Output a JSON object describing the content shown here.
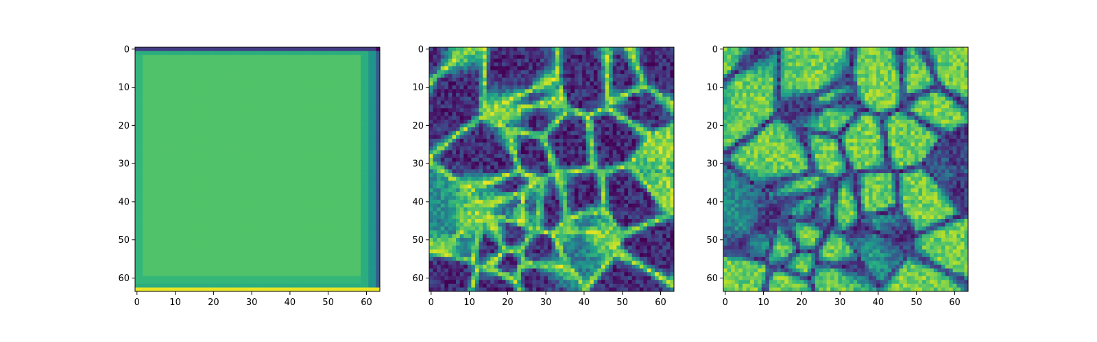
{
  "chart_data": [
    {
      "type": "heatmap",
      "title": "",
      "xlabel": "",
      "ylabel": "",
      "grid": false,
      "colormap": "viridis",
      "shape": [
        64,
        64
      ],
      "xlim": [
        -0.5,
        63.5
      ],
      "ylim": [
        63.5,
        -0.5
      ],
      "xticks": [
        0,
        10,
        20,
        30,
        40,
        50,
        60
      ],
      "yticks": [
        0,
        10,
        20,
        30,
        40,
        50,
        60
      ],
      "xtick_labels": [
        "0",
        "10",
        "20",
        "30",
        "40",
        "50",
        "60"
      ],
      "ytick_labels": [
        "0",
        "10",
        "20",
        "30",
        "40",
        "50",
        "60"
      ],
      "pattern": "constant green interior (~0.72) with dark top row, yellow bottom row, teal/blue right columns and lighter edge bands"
    },
    {
      "type": "heatmap",
      "title": "",
      "xlabel": "",
      "ylabel": "",
      "grid": false,
      "colormap": "viridis",
      "shape": [
        64,
        64
      ],
      "xlim": [
        -0.5,
        63.5
      ],
      "ylim": [
        63.5,
        -0.5
      ],
      "xticks": [
        0,
        10,
        20,
        30,
        40,
        50,
        60
      ],
      "yticks": [
        0,
        10,
        20,
        30,
        40,
        50,
        60
      ],
      "xtick_labels": [
        "0",
        "10",
        "20",
        "30",
        "40",
        "50",
        "60"
      ],
      "ytick_labels": [
        "0",
        "10",
        "20",
        "30",
        "40",
        "50",
        "60"
      ],
      "pattern": "bright cellular filament network on dark blue background"
    },
    {
      "type": "heatmap",
      "title": "",
      "xlabel": "",
      "ylabel": "",
      "grid": false,
      "colormap": "viridis",
      "shape": [
        64,
        64
      ],
      "xlim": [
        -0.5,
        63.5
      ],
      "ylim": [
        63.5,
        -0.5
      ],
      "xticks": [
        0,
        10,
        20,
        30,
        40,
        50,
        60
      ],
      "yticks": [
        0,
        10,
        20,
        30,
        40,
        50,
        60
      ],
      "xtick_labels": [
        "0",
        "10",
        "20",
        "30",
        "40",
        "50",
        "60"
      ],
      "ytick_labels": [
        "0",
        "10",
        "20",
        "30",
        "40",
        "50",
        "60"
      ],
      "pattern": "bright green cells separated by dark blue boundary lines (inverse of panel 2)"
    }
  ],
  "colors": {
    "viridis_stops": [
      "#440154",
      "#482878",
      "#3e4989",
      "#31688e",
      "#26828e",
      "#1f9e89",
      "#35b779",
      "#6ece58",
      "#b5de2b",
      "#fde725"
    ]
  }
}
